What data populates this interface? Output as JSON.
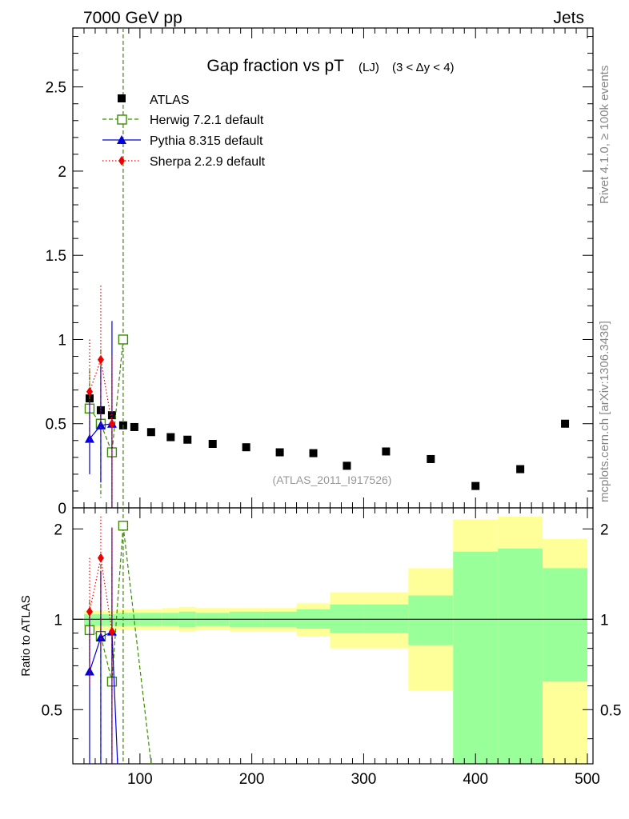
{
  "header": {
    "left": "7000 GeV pp",
    "right": "Jets"
  },
  "title": {
    "main": "Gap fraction vs pT",
    "sub": "(LJ)",
    "cut": "(3 < Δy < 4)"
  },
  "watermark": "(ATLAS_2011_I917526)",
  "side_texts": {
    "rivet": "Rivet 4.1.0, ≥ 100k events",
    "mcplots": "mcplots.cern.ch [arXiv:1306.3436]"
  },
  "ratio_ylabel": "Ratio to ATLAS",
  "colors": {
    "atlas": "#000000",
    "herwig": "#3a8c00",
    "pythia": "#0000dd",
    "sherpa": "#ee0000",
    "band_inner": "#99ff99",
    "band_outer": "#ffff99"
  },
  "chart_data": {
    "type": "scatter",
    "main": {
      "ylim": [
        0,
        2.85
      ],
      "yticks": [
        0,
        0.5,
        1,
        1.5,
        2,
        2.5
      ],
      "ytick_labels": [
        "0",
        "0.5",
        "1",
        "1.5",
        "2",
        "2.5"
      ]
    },
    "ratio": {
      "ylim": [
        0.33,
        2.35
      ],
      "yticks": [
        0.5,
        1,
        2
      ],
      "ytick_labels": [
        "0.5",
        "1",
        "2"
      ]
    },
    "x": {
      "lim": [
        40,
        505
      ],
      "ticks": [
        100,
        200,
        300,
        400,
        500
      ],
      "tick_labels": [
        "100",
        "200",
        "300",
        "400",
        "500"
      ]
    },
    "legend": [
      "ATLAS",
      "Herwig 7.2.1 default",
      "Pythia 8.315 default",
      "Sherpa 2.2.9 default"
    ],
    "atlas": {
      "x": [
        55,
        65,
        75,
        85,
        95,
        110,
        127.5,
        142.5,
        165,
        195,
        225,
        255,
        285,
        320,
        360,
        400,
        440,
        480
      ],
      "y": [
        0.65,
        0.58,
        0.55,
        0.49,
        0.48,
        0.45,
        0.42,
        0.405,
        0.38,
        0.36,
        0.33,
        0.325,
        0.25,
        0.335,
        0.29,
        0.13,
        0.23,
        0.5
      ],
      "xlow": [
        50,
        60,
        70,
        80,
        90,
        100,
        120,
        135,
        150,
        180,
        210,
        240,
        270,
        300,
        340,
        380,
        420,
        460
      ],
      "xhigh": [
        60,
        70,
        80,
        90,
        100,
        120,
        135,
        150,
        180,
        210,
        240,
        270,
        300,
        340,
        380,
        420,
        460,
        500
      ]
    },
    "ratio_bands": {
      "inner": [
        [
          0.95,
          1.04
        ],
        [
          0.95,
          1.04
        ],
        [
          0.95,
          1.04
        ],
        [
          0.95,
          1.05
        ],
        [
          0.95,
          1.05
        ],
        [
          0.95,
          1.05
        ],
        [
          0.95,
          1.05
        ],
        [
          0.94,
          1.06
        ],
        [
          0.95,
          1.05
        ],
        [
          0.94,
          1.06
        ],
        [
          0.94,
          1.06
        ],
        [
          0.93,
          1.08
        ],
        [
          0.9,
          1.12
        ],
        [
          0.9,
          1.12
        ],
        [
          0.82,
          1.2
        ],
        [
          0.33,
          1.68
        ],
        [
          0.33,
          1.72
        ],
        [
          0.62,
          1.48
        ]
      ],
      "outer": [
        [
          0.92,
          1.07
        ],
        [
          0.92,
          1.07
        ],
        [
          0.92,
          1.07
        ],
        [
          0.92,
          1.08
        ],
        [
          0.92,
          1.08
        ],
        [
          0.92,
          1.08
        ],
        [
          0.92,
          1.09
        ],
        [
          0.91,
          1.1
        ],
        [
          0.92,
          1.09
        ],
        [
          0.91,
          1.09
        ],
        [
          0.91,
          1.09
        ],
        [
          0.88,
          1.13
        ],
        [
          0.8,
          1.23
        ],
        [
          0.8,
          1.23
        ],
        [
          0.58,
          1.48
        ],
        [
          0.33,
          2.15
        ],
        [
          0.33,
          2.2
        ],
        [
          0.33,
          1.85
        ]
      ]
    },
    "herwig": {
      "x": [
        55,
        65,
        75,
        85
      ],
      "y": [
        0.59,
        0.5,
        0.33,
        1.0
      ],
      "ylo": [
        0.4,
        0.06,
        0.0,
        0.0
      ],
      "yhi": [
        0.82,
        0.94,
        0.8,
        2.9
      ],
      "ratio": [
        0.92,
        0.88,
        0.62,
        2.05
      ],
      "ratio_lo": [
        0.72,
        0.2,
        0.2,
        0.2
      ],
      "ratio_hi": [
        1.15,
        1.6,
        1.5,
        3.0
      ],
      "ratio_tail": [
        [
          85,
          2.05
        ],
        [
          110,
          0.2
        ]
      ]
    },
    "pythia": {
      "x": [
        55,
        65,
        75
      ],
      "y": [
        0.41,
        0.49,
        0.5
      ],
      "ylo": [
        0.2,
        0.15,
        0.0
      ],
      "yhi": [
        0.63,
        0.84,
        1.11
      ],
      "ratio": [
        0.67,
        0.87,
        0.91
      ],
      "ratio_lo": [
        0.2,
        0.2,
        0.2
      ],
      "ratio_hi": [
        1.02,
        1.45,
        2.02
      ],
      "ratio_tail": [
        [
          75,
          0.91
        ],
        [
          80,
          0.2
        ]
      ]
    },
    "sherpa": {
      "x": [
        55,
        65,
        75
      ],
      "y": [
        0.69,
        0.88,
        0.5
      ],
      "ylo": [
        0.38,
        0.44,
        0.0
      ],
      "yhi": [
        1.0,
        1.32,
        0.9
      ],
      "ratio": [
        1.06,
        1.6,
        0.91
      ],
      "ratio_lo": [
        0.6,
        0.8,
        0.2
      ],
      "ratio_hi": [
        1.6,
        2.2,
        2.02
      ]
    }
  }
}
